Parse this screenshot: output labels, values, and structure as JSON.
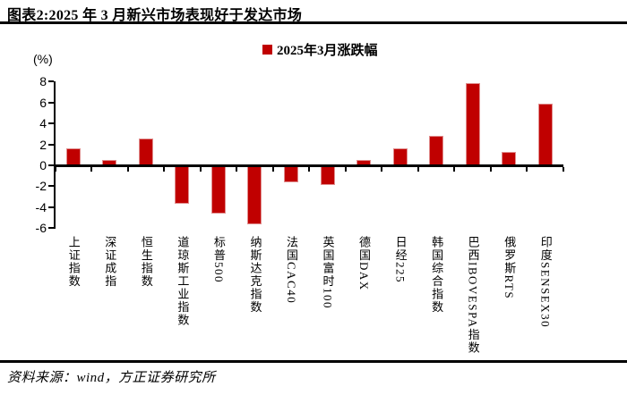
{
  "header": {
    "title": "图表2:2025 年 3 月新兴市场表现好于发达市场"
  },
  "footer": {
    "source": "资料来源：wind，方正证券研究所"
  },
  "colors": {
    "bar": "#c00000",
    "bar_border": "#e08d8d",
    "axis": "#000000"
  },
  "chart_data": {
    "type": "bar",
    "title": "",
    "legend": [
      "2025年3月涨跌幅"
    ],
    "legend_position": "top-center",
    "unit_label": "(%)",
    "xlabel": "",
    "ylabel": "(%)",
    "categories": [
      "上证指数",
      "深证成指",
      "恒生指数",
      "道琼斯工业指数",
      "标普500",
      "纳斯达克指数",
      "法国CAC40",
      "英国富时100",
      "德国DAX",
      "日经225",
      "韩国综合指数",
      "巴西IBOVESPA指数",
      "俄罗斯RTS",
      "印度SENSEX30"
    ],
    "values": [
      1.6,
      0.5,
      2.6,
      -3.7,
      -4.6,
      -5.6,
      -1.6,
      -1.9,
      0.5,
      1.6,
      2.8,
      7.9,
      1.3,
      5.9
    ],
    "y_ticks": [
      8,
      6,
      4,
      2,
      0,
      -2,
      -4,
      -6
    ],
    "ylim": [
      -6,
      8
    ],
    "grid": false,
    "bar_color": "#c00000"
  }
}
